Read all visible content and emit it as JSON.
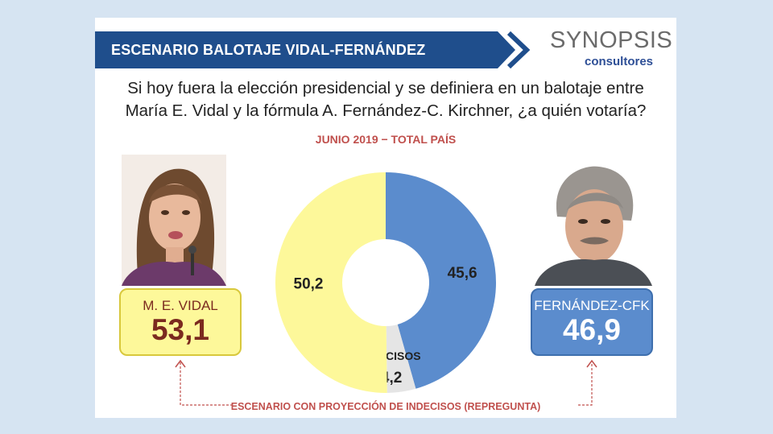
{
  "header": {
    "title": "ESCENARIO BALOTAJE VIDAL-FERNÁNDEZ",
    "logo_main": "SYNOPSIS",
    "logo_sub": "consultores"
  },
  "question": {
    "line1": "Si hoy fuera la elección presidencial y se definiera en un balotaje entre",
    "line2": "María E. Vidal y la fórmula A. Fernández-C. Kirchner, ¿a quién votaría?"
  },
  "period": "JUNIO 2019 − TOTAL PAÍS",
  "chart_data": {
    "type": "pie",
    "variant": "donut",
    "title": "",
    "slices": [
      {
        "label": "",
        "value": 45.6,
        "display": "45,6",
        "color": "#5b8ccd"
      },
      {
        "label": "INDECISOS",
        "value": 4.2,
        "display": "4,2",
        "color": "#e5e5e5"
      },
      {
        "label": "",
        "value": 50.2,
        "display": "50,2",
        "color": "#fdf89a"
      }
    ]
  },
  "cards": {
    "left": {
      "name": "M. E. VIDAL",
      "value": "53,1",
      "color": "#fdf89a"
    },
    "right": {
      "name": "FERNÁNDEZ-CFK",
      "value": "46,9",
      "color": "#5b8ccd"
    }
  },
  "note": "ESCENARIO CON PROYECCIÓN DE INDECISOS (REPREGUNTA)",
  "colors": {
    "banner": "#1f4e8c",
    "accent": "#c0504d"
  }
}
